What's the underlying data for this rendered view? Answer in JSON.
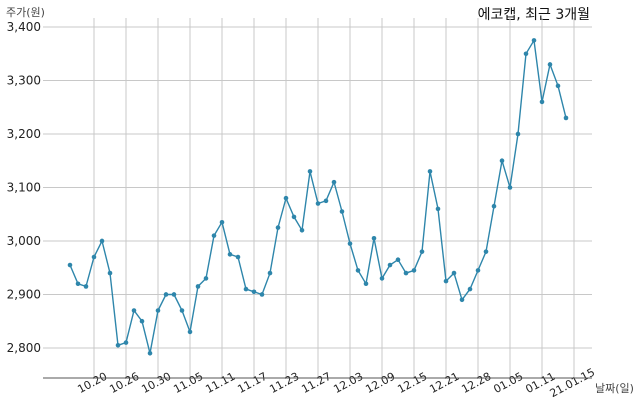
{
  "chart_data": {
    "type": "line",
    "title": "에코캡, 최근 3개월",
    "xlabel": "날짜(일)",
    "ylabel": "주가(원)",
    "ylim": [
      2770,
      3400
    ],
    "ytick_values": [
      2800,
      2900,
      3000,
      3100,
      3200,
      3300,
      3400
    ],
    "ytick_labels": [
      "2,800",
      "2,900",
      "3,000",
      "3,100",
      "3,200",
      "3,300",
      "3,400"
    ],
    "xtick_labels": [
      "10.20",
      "10.26",
      "10.30",
      "11.05",
      "11.11",
      "11.17",
      "11.23",
      "11.27",
      "12.03",
      "12.09",
      "12.15",
      "12.21",
      "12.28",
      "01.05",
      "01.11",
      "21.01.15"
    ],
    "xtick_index": [
      3,
      7,
      11,
      15,
      19,
      23,
      27,
      31,
      35,
      39,
      43,
      47,
      51,
      55,
      59,
      63
    ],
    "grid": true,
    "series": [
      {
        "values": [
          2955,
          2920,
          2915,
          2970,
          3000,
          2940,
          2805,
          2810,
          2870,
          2850,
          2790,
          2870,
          2900,
          2900,
          2870,
          2830,
          2915,
          2930,
          3010,
          3035,
          2975,
          2970,
          2910,
          2905,
          2900,
          2940,
          3025,
          3080,
          3045,
          3020,
          3130,
          3070,
          3075,
          3110,
          3055,
          2995,
          2945,
          2920,
          3005,
          2930,
          2955,
          2965,
          2940,
          2945,
          2980,
          3130,
          3060,
          2925,
          2940,
          2890,
          2910,
          2945,
          2980,
          3065,
          3150,
          3100,
          3200,
          3350,
          3375,
          3260,
          3330,
          3290,
          3230
        ]
      }
    ],
    "colors": {
      "line": "#2e86ab",
      "grid": "#c8c8c8"
    }
  }
}
